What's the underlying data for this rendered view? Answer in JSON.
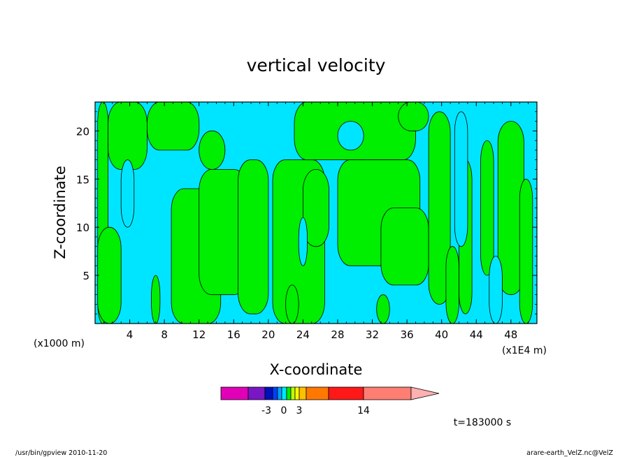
{
  "chart_data": {
    "type": "heatmap",
    "title": "vertical velocity",
    "xlabel": "X-coordinate",
    "ylabel": "Z-coordinate",
    "x_unit_left": "(x1000 m)",
    "x_unit_right": "(x1E4 m)",
    "xlim": [
      0,
      51
    ],
    "ylim": [
      0,
      23
    ],
    "x_ticks": [
      4,
      8,
      12,
      16,
      20,
      24,
      28,
      32,
      36,
      40,
      44,
      48
    ],
    "y_ticks": [
      5,
      10,
      15,
      20
    ],
    "colors": {
      "negative": "#00e5ff",
      "positive": "#00ee00",
      "contour": "#000000"
    },
    "positive_regions": [
      {
        "x0": 0.3,
        "x1": 1.5,
        "z0": 0,
        "z1": 23
      },
      {
        "x0": 1.5,
        "x1": 6.0,
        "z0": 16,
        "z1": 23
      },
      {
        "x0": 6.0,
        "x1": 12.0,
        "z0": 18,
        "z1": 23
      },
      {
        "x0": 8.8,
        "x1": 14.5,
        "z0": 0,
        "z1": 14
      },
      {
        "x0": 12.0,
        "x1": 17.5,
        "z0": 3,
        "z1": 16
      },
      {
        "x0": 16.5,
        "x1": 20.0,
        "z0": 1,
        "z1": 17
      },
      {
        "x0": 12.0,
        "x1": 15.0,
        "z0": 16,
        "z1": 20
      },
      {
        "x0": 20.5,
        "x1": 26.5,
        "z0": 0,
        "z1": 17
      },
      {
        "x0": 24.0,
        "x1": 27.0,
        "z0": 8,
        "z1": 16
      },
      {
        "x0": 23.0,
        "x1": 37.0,
        "z0": 17,
        "z1": 23
      },
      {
        "x0": 28.0,
        "x1": 37.5,
        "z0": 6,
        "z1": 17
      },
      {
        "x0": 33.0,
        "x1": 38.5,
        "z0": 4,
        "z1": 12
      },
      {
        "x0": 35.0,
        "x1": 38.5,
        "z0": 20,
        "z1": 23
      },
      {
        "x0": 38.5,
        "x1": 41.0,
        "z0": 2,
        "z1": 22
      },
      {
        "x0": 42.0,
        "x1": 43.5,
        "z0": 1,
        "z1": 17
      },
      {
        "x0": 44.5,
        "x1": 46.0,
        "z0": 5,
        "z1": 19
      },
      {
        "x0": 46.5,
        "x1": 49.5,
        "z0": 3,
        "z1": 21
      },
      {
        "x0": 49.0,
        "x1": 50.5,
        "z0": 0,
        "z1": 15
      },
      {
        "x0": 0.3,
        "x1": 3.0,
        "z0": 0,
        "z1": 10
      },
      {
        "x0": 6.5,
        "x1": 7.5,
        "z0": 0,
        "z1": 5
      },
      {
        "x0": 22.0,
        "x1": 23.5,
        "z0": 0,
        "z1": 4
      },
      {
        "x0": 32.5,
        "x1": 34.0,
        "z0": 0,
        "z1": 3
      },
      {
        "x0": 40.5,
        "x1": 42.0,
        "z0": 0,
        "z1": 8
      }
    ],
    "negative_regions": [
      {
        "x0": 23.5,
        "x1": 24.5,
        "z0": 6,
        "z1": 11
      },
      {
        "x0": 3.0,
        "x1": 4.5,
        "z0": 10,
        "z1": 17
      },
      {
        "x0": 28.0,
        "x1": 31.0,
        "z0": 18,
        "z1": 21
      },
      {
        "x0": 41.5,
        "x1": 43.0,
        "z0": 8,
        "z1": 22
      },
      {
        "x0": 45.5,
        "x1": 47.0,
        "z0": 0,
        "z1": 7
      }
    ],
    "colorbar": {
      "colors": [
        "#e000b8",
        "#7a16c4",
        "#0010b8",
        "#0040ff",
        "#00a0ff",
        "#00e5ff",
        "#00ee00",
        "#c0ff00",
        "#ffff00",
        "#ffc000",
        "#ff7800",
        "#ff1818",
        "#ff7e74",
        "#ffb0b0"
      ],
      "tick_labels": [
        "-3",
        "0",
        "3",
        "14"
      ]
    },
    "time_label": "t=183000 s"
  },
  "footer": {
    "left": "/usr/bin/gpview  2010-11-20",
    "right": "arare-earth_VelZ.nc@VelZ"
  }
}
